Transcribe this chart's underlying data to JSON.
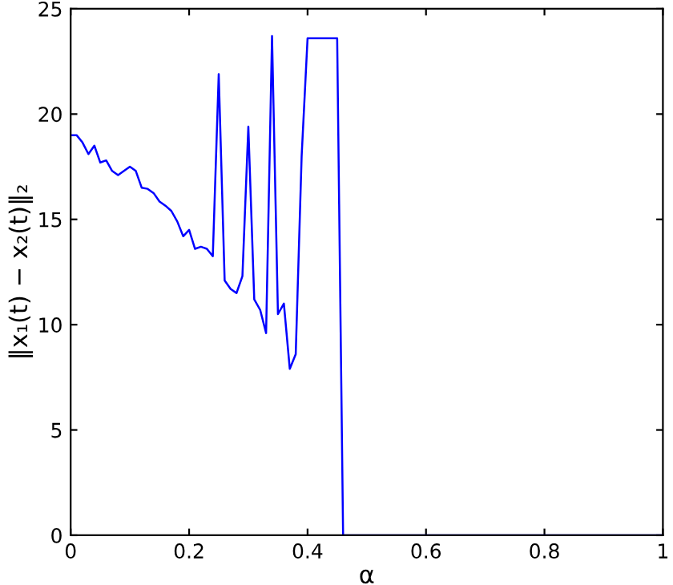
{
  "chart_data": {
    "type": "line",
    "xlabel": "α",
    "ylabel": "‖x₁(t) − x₂(t)‖₂",
    "x": [
      0,
      0.01,
      0.02,
      0.03,
      0.04,
      0.05,
      0.06,
      0.07,
      0.08,
      0.09,
      0.1,
      0.11,
      0.12,
      0.13,
      0.14,
      0.15,
      0.16,
      0.17,
      0.18,
      0.19,
      0.2,
      0.21,
      0.22,
      0.23,
      0.24,
      0.25,
      0.26,
      0.27,
      0.28,
      0.29,
      0.3,
      0.31,
      0.32,
      0.33,
      0.34,
      0.35,
      0.36,
      0.37,
      0.38,
      0.39,
      0.4,
      0.41,
      0.42,
      0.43,
      0.44,
      0.45,
      0.46,
      1.0
    ],
    "series": [
      {
        "color": "#0000ff",
        "values": [
          19.0,
          19.0,
          18.65,
          18.1,
          18.5,
          17.7,
          17.8,
          17.3,
          17.1,
          17.3,
          17.5,
          17.3,
          16.5,
          16.45,
          16.25,
          15.85,
          15.65,
          15.4,
          14.9,
          14.2,
          14.5,
          13.6,
          13.7,
          13.6,
          13.25,
          21.9,
          12.1,
          11.7,
          11.5,
          12.3,
          19.4,
          11.2,
          10.7,
          9.6,
          23.7,
          10.5,
          11.0,
          7.9,
          8.6,
          18.0,
          23.6,
          23.6,
          23.6,
          23.6,
          23.6,
          23.6,
          0,
          0
        ]
      }
    ],
    "xlim": [
      0,
      1
    ],
    "ylim": [
      0,
      25
    ],
    "xticks": [
      0,
      0.2,
      0.4,
      0.6,
      0.8,
      1
    ],
    "yticks": [
      0,
      5,
      10,
      15,
      20,
      25
    ],
    "grid": false,
    "marker": "none",
    "line_style": "solid"
  }
}
